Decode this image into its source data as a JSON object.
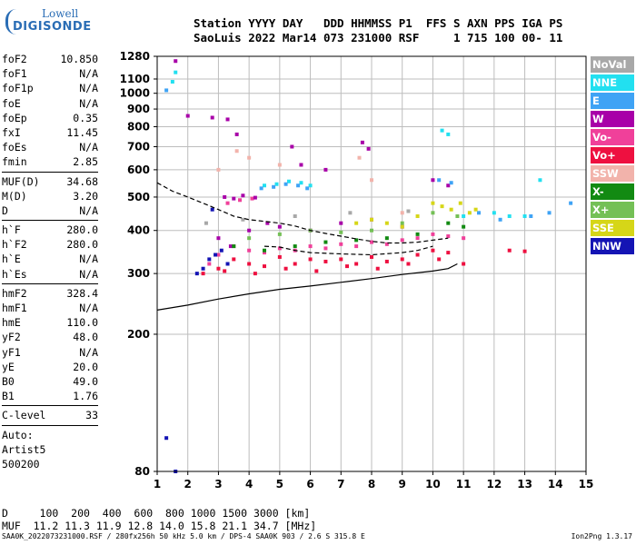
{
  "logo": {
    "top": "Lowell",
    "bottom": "DIGISONDE"
  },
  "header": {
    "line1": "Station YYYY DAY   DDD HHMMSS P1  FFS S AXN PPS IGA PS",
    "line2": "SaoLuis 2022 Mar14 073 231000 RSF     1 715 100 00- 11"
  },
  "params": [
    {
      "group": [
        {
          "name": "foF2",
          "value": "10.850"
        },
        {
          "name": "foF1",
          "value": "N/A"
        },
        {
          "name": "foF1p",
          "value": "N/A"
        },
        {
          "name": "foE",
          "value": "N/A"
        },
        {
          "name": "foEp",
          "value": "0.35"
        },
        {
          "name": "fxI",
          "value": "11.45"
        },
        {
          "name": "foEs",
          "value": "N/A"
        },
        {
          "name": "fmin",
          "value": "2.85"
        }
      ]
    },
    {
      "group": [
        {
          "name": "MUF(D)",
          "value": "34.68"
        },
        {
          "name": "M(D)",
          "value": "3.20"
        },
        {
          "name": "D",
          "value": "N/A"
        }
      ]
    },
    {
      "group": [
        {
          "name": "h`F",
          "value": "280.0"
        },
        {
          "name": "h`F2",
          "value": "280.0"
        },
        {
          "name": "h`E",
          "value": "N/A"
        },
        {
          "name": "h`Es",
          "value": "N/A"
        }
      ]
    },
    {
      "group": [
        {
          "name": "hmF2",
          "value": "328.4"
        },
        {
          "name": "hmF1",
          "value": "N/A"
        },
        {
          "name": "hmE",
          "value": "110.0"
        },
        {
          "name": "yF2",
          "value": "48.0"
        },
        {
          "name": "yF1",
          "value": "N/A"
        },
        {
          "name": "yE",
          "value": "20.0"
        },
        {
          "name": "B0",
          "value": "49.0"
        },
        {
          "name": "B1",
          "value": "1.76"
        }
      ]
    },
    {
      "group": [
        {
          "name": "C-level",
          "value": "33"
        }
      ]
    }
  ],
  "autoscaling": {
    "line1": "Auto:",
    "line2": "Artist5",
    "line3": "500200"
  },
  "legend": [
    {
      "label": "NoVal",
      "color": "#a8a8a8"
    },
    {
      "label": "NNE",
      "color": "#22e0f0"
    },
    {
      "label": "E",
      "color": "#3fa3f5"
    },
    {
      "label": "W",
      "color": "#a800a8"
    },
    {
      "label": "Vo-",
      "color": "#f0409a"
    },
    {
      "label": "Vo+",
      "color": "#ee1040"
    },
    {
      "label": "SSW",
      "color": "#f2b3ab"
    },
    {
      "label": "X-",
      "color": "#128a12"
    },
    {
      "label": "X+",
      "color": "#74c056"
    },
    {
      "label": "SSE",
      "color": "#d6d618"
    },
    {
      "label": "NNW",
      "color": "#1414b4"
    }
  ],
  "bottom": {
    "line1": "D     100  200  400  600  800 1000 1500 3000 [km]",
    "line2": "MUF  11.2 11.3 11.9 12.8 14.0 15.8 21.1 34.7 [MHz]"
  },
  "footer": "SAA0K_2022073231000.RSF / 280fx256h 50 kHz 5.0 km / DPS-4 SAA0K 903 / 2.6 S 315.8 E",
  "version": "Ion2Png 1.3.17",
  "chart_data": {
    "type": "scatter",
    "title": "",
    "xlabel": "",
    "ylabel": "",
    "xlim": [
      1,
      15
    ],
    "ylim": [
      80,
      1280
    ],
    "y_scale": "logarithmic",
    "x_ticks": [
      1,
      2,
      3,
      4,
      5,
      6,
      7,
      8,
      9,
      10,
      11,
      12,
      13,
      14,
      15
    ],
    "y_ticks": [
      80,
      200,
      300,
      400,
      500,
      600,
      700,
      800,
      900,
      1000,
      1100,
      1280
    ],
    "grid": true,
    "series": [
      {
        "name": "Vo+",
        "color": "#ee1040",
        "points": [
          [
            3.0,
            310
          ],
          [
            3.5,
            330
          ],
          [
            4.0,
            320
          ],
          [
            4.5,
            315
          ],
          [
            5.0,
            335
          ],
          [
            5.5,
            320
          ],
          [
            6.0,
            330
          ],
          [
            6.5,
            325
          ],
          [
            7.0,
            330
          ],
          [
            7.5,
            320
          ],
          [
            8.0,
            335
          ],
          [
            8.5,
            325
          ],
          [
            9.0,
            330
          ],
          [
            9.5,
            340
          ],
          [
            10.0,
            350
          ],
          [
            10.5,
            345
          ],
          [
            11.0,
            320
          ],
          [
            2.5,
            300
          ],
          [
            3.2,
            305
          ],
          [
            4.2,
            300
          ],
          [
            5.2,
            310
          ],
          [
            6.2,
            305
          ],
          [
            7.2,
            315
          ],
          [
            8.2,
            310
          ],
          [
            9.2,
            320
          ],
          [
            10.2,
            330
          ],
          [
            12.5,
            350
          ],
          [
            13.0,
            348
          ]
        ]
      },
      {
        "name": "Vo-",
        "color": "#f0409a",
        "points": [
          [
            3.0,
            340
          ],
          [
            3.5,
            360
          ],
          [
            4.0,
            350
          ],
          [
            4.5,
            345
          ],
          [
            5.0,
            355
          ],
          [
            5.5,
            350
          ],
          [
            6.0,
            360
          ],
          [
            6.5,
            355
          ],
          [
            7.0,
            365
          ],
          [
            7.5,
            360
          ],
          [
            8.0,
            370
          ],
          [
            8.5,
            365
          ],
          [
            9.0,
            375
          ],
          [
            9.5,
            380
          ],
          [
            10.0,
            390
          ],
          [
            10.5,
            385
          ],
          [
            11.0,
            380
          ],
          [
            2.7,
            320
          ],
          [
            3.3,
            480
          ],
          [
            3.7,
            490
          ],
          [
            4.1,
            495
          ]
        ]
      },
      {
        "name": "W",
        "color": "#a800a8",
        "points": [
          [
            3.2,
            500
          ],
          [
            3.5,
            495
          ],
          [
            3.8,
            505
          ],
          [
            4.2,
            498
          ],
          [
            3.0,
            380
          ],
          [
            3.4,
            360
          ],
          [
            4.0,
            400
          ],
          [
            4.6,
            420
          ],
          [
            5.0,
            410
          ],
          [
            6.0,
            400
          ],
          [
            7.0,
            420
          ],
          [
            8.0,
            430
          ],
          [
            9.0,
            410
          ],
          [
            10.0,
            560
          ],
          [
            10.5,
            540
          ],
          [
            7.7,
            720
          ],
          [
            7.9,
            690
          ],
          [
            2.8,
            850
          ],
          [
            3.3,
            840
          ],
          [
            3.6,
            760
          ],
          [
            5.4,
            700
          ],
          [
            5.7,
            620
          ],
          [
            6.5,
            600
          ],
          [
            1.6,
            1240
          ],
          [
            2.0,
            860
          ]
        ]
      },
      {
        "name": "NNE",
        "color": "#22e0f0",
        "points": [
          [
            4.5,
            540
          ],
          [
            4.9,
            545
          ],
          [
            5.3,
            555
          ],
          [
            5.7,
            550
          ],
          [
            6.0,
            540
          ],
          [
            10.3,
            780
          ],
          [
            10.5,
            760
          ],
          [
            11.0,
            440
          ],
          [
            12.0,
            450
          ],
          [
            12.5,
            440
          ],
          [
            13.0,
            440
          ],
          [
            13.5,
            560
          ],
          [
            1.5,
            1080
          ],
          [
            1.6,
            1150
          ]
        ]
      },
      {
        "name": "E",
        "color": "#3fa3f5",
        "points": [
          [
            4.4,
            530
          ],
          [
            4.8,
            535
          ],
          [
            5.2,
            545
          ],
          [
            5.6,
            540
          ],
          [
            5.9,
            530
          ],
          [
            10.2,
            560
          ],
          [
            10.6,
            550
          ],
          [
            11.5,
            450
          ],
          [
            12.2,
            430
          ],
          [
            13.2,
            440
          ],
          [
            13.8,
            450
          ],
          [
            14.5,
            480
          ],
          [
            1.3,
            1020
          ]
        ]
      },
      {
        "name": "X-",
        "color": "#128a12",
        "points": [
          [
            3.5,
            360
          ],
          [
            4.5,
            350
          ],
          [
            5.5,
            360
          ],
          [
            6.5,
            370
          ],
          [
            7.5,
            375
          ],
          [
            8.5,
            380
          ],
          [
            9.5,
            390
          ],
          [
            10.5,
            420
          ],
          [
            11.0,
            410
          ]
        ]
      },
      {
        "name": "X+",
        "color": "#74c056",
        "points": [
          [
            4.0,
            380
          ],
          [
            5.0,
            390
          ],
          [
            6.0,
            400
          ],
          [
            7.0,
            395
          ],
          [
            8.0,
            400
          ],
          [
            9.0,
            420
          ],
          [
            10.0,
            450
          ],
          [
            10.8,
            440
          ]
        ]
      },
      {
        "name": "SSE",
        "color": "#d6d618",
        "points": [
          [
            7.5,
            420
          ],
          [
            8.0,
            430
          ],
          [
            8.5,
            420
          ],
          [
            9.0,
            410
          ],
          [
            9.5,
            440
          ],
          [
            10.0,
            480
          ],
          [
            10.3,
            470
          ],
          [
            10.6,
            460
          ],
          [
            10.9,
            480
          ],
          [
            11.2,
            450
          ],
          [
            11.4,
            460
          ]
        ]
      },
      {
        "name": "SSW",
        "color": "#f2b3ab",
        "points": [
          [
            3.0,
            600
          ],
          [
            3.6,
            680
          ],
          [
            4.0,
            650
          ],
          [
            5.0,
            620
          ],
          [
            7.6,
            650
          ],
          [
            8.0,
            560
          ],
          [
            9.0,
            450
          ]
        ]
      },
      {
        "name": "NNW",
        "color": "#1414b4",
        "points": [
          [
            2.5,
            310
          ],
          [
            2.7,
            330
          ],
          [
            2.9,
            340
          ],
          [
            3.1,
            350
          ],
          [
            3.3,
            320
          ],
          [
            1.3,
            100
          ],
          [
            1.6,
            80
          ],
          [
            2.3,
            300
          ],
          [
            2.8,
            460
          ]
        ]
      },
      {
        "name": "NoVal",
        "color": "#a8a8a8",
        "points": [
          [
            2.6,
            420
          ],
          [
            3.8,
            430
          ],
          [
            5.5,
            440
          ],
          [
            7.3,
            450
          ],
          [
            9.2,
            455
          ]
        ]
      }
    ],
    "curves": [
      {
        "name": "upper-profile",
        "points": [
          [
            1.0,
            550
          ],
          [
            1.5,
            520
          ],
          [
            2.0,
            500
          ],
          [
            2.5,
            480
          ],
          [
            3.0,
            460
          ],
          [
            3.5,
            440
          ],
          [
            4.0,
            430
          ],
          [
            4.5,
            425
          ],
          [
            5.0,
            420
          ],
          [
            5.5,
            412
          ],
          [
            6.0,
            400
          ],
          [
            6.5,
            392
          ],
          [
            7.0,
            385
          ],
          [
            7.5,
            378
          ],
          [
            8.0,
            372
          ],
          [
            8.5,
            368
          ],
          [
            9.0,
            368
          ],
          [
            9.5,
            370
          ],
          [
            10.0,
            375
          ],
          [
            10.5,
            380
          ]
        ]
      },
      {
        "name": "lower-profile",
        "points": [
          [
            1.0,
            235
          ],
          [
            2.0,
            243
          ],
          [
            3.0,
            253
          ],
          [
            4.0,
            262
          ],
          [
            5.0,
            270
          ],
          [
            6.0,
            276
          ],
          [
            7.0,
            283
          ],
          [
            8.0,
            290
          ],
          [
            9.0,
            298
          ],
          [
            10.0,
            305
          ],
          [
            10.5,
            310
          ],
          [
            10.8,
            320
          ]
        ]
      },
      {
        "name": "trace-dash",
        "points": [
          [
            4.5,
            360
          ],
          [
            5.0,
            358
          ],
          [
            5.5,
            350
          ],
          [
            6.0,
            345
          ],
          [
            7.0,
            342
          ],
          [
            8.0,
            340
          ],
          [
            9.0,
            345
          ],
          [
            9.5,
            350
          ],
          [
            10.0,
            360
          ]
        ]
      }
    ]
  }
}
